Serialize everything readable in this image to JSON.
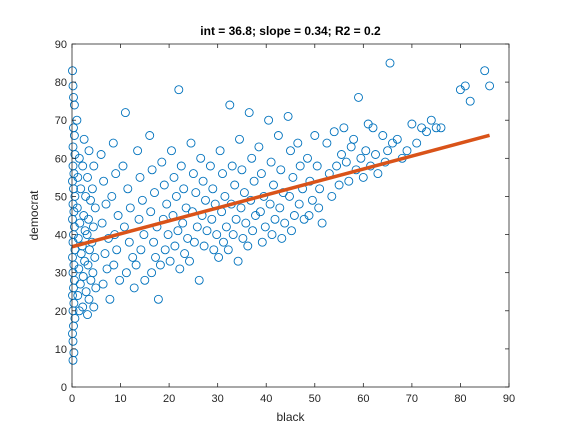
{
  "colors": {
    "points": "#0072BD",
    "fit_line": "#D95319",
    "axes": "#262626",
    "background": "#ffffff"
  },
  "chart_data": {
    "type": "scatter",
    "title": "int = 36.8; slope = 0.34; R2 = 0.2",
    "xlabel": "black",
    "ylabel": "democrat",
    "xlim": [
      0,
      90
    ],
    "ylim": [
      0,
      90
    ],
    "xticks": [
      "0",
      "10",
      "20",
      "30",
      "40",
      "50",
      "60",
      "70",
      "80",
      "90"
    ],
    "yticks": [
      "0",
      "10",
      "20",
      "30",
      "40",
      "50",
      "60",
      "70",
      "80",
      "90"
    ],
    "grid": false,
    "legend": "none",
    "marker": "open-circle",
    "fit_line": {
      "intercept": 36.8,
      "slope": 0.34,
      "r2": 0.2,
      "x_range": [
        0,
        86
      ]
    },
    "series": [
      {
        "points": [
          [
            0.1,
            83
          ],
          [
            0.2,
            79
          ],
          [
            0.3,
            76
          ],
          [
            0.5,
            74
          ],
          [
            1,
            70
          ],
          [
            0.3,
            68
          ],
          [
            0.5,
            66
          ],
          [
            0.2,
            63
          ],
          [
            0.6,
            61
          ],
          [
            0.2,
            58
          ],
          [
            0.4,
            56
          ],
          [
            0.1,
            54
          ],
          [
            0.3,
            52
          ],
          [
            0.6,
            50
          ],
          [
            0.2,
            48
          ],
          [
            0.4,
            46
          ],
          [
            0.1,
            44
          ],
          [
            0.5,
            42
          ],
          [
            0.3,
            40
          ],
          [
            0.2,
            38
          ],
          [
            0.6,
            36
          ],
          [
            0.1,
            34
          ],
          [
            0.4,
            32
          ],
          [
            0.2,
            30
          ],
          [
            0.5,
            28
          ],
          [
            0.3,
            26
          ],
          [
            0.1,
            24
          ],
          [
            0.4,
            22
          ],
          [
            0.2,
            20
          ],
          [
            0.6,
            18
          ],
          [
            0.3,
            16
          ],
          [
            0.1,
            14
          ],
          [
            0.2,
            12
          ],
          [
            0.4,
            9
          ],
          [
            0.2,
            7
          ],
          [
            1.5,
            60
          ],
          [
            1.2,
            55
          ],
          [
            1.8,
            52
          ],
          [
            1.1,
            47
          ],
          [
            1.6,
            43
          ],
          [
            1.3,
            39
          ],
          [
            1.9,
            35
          ],
          [
            1.4,
            31
          ],
          [
            1.7,
            27
          ],
          [
            1.2,
            24
          ],
          [
            1.5,
            20
          ],
          [
            2.5,
            65
          ],
          [
            2.2,
            58
          ],
          [
            2.8,
            50
          ],
          [
            2.4,
            45
          ],
          [
            2.7,
            41
          ],
          [
            2.1,
            37
          ],
          [
            2.6,
            33
          ],
          [
            2.3,
            29
          ],
          [
            2.9,
            25
          ],
          [
            2.2,
            21
          ],
          [
            3.5,
            62
          ],
          [
            3.2,
            55
          ],
          [
            3.8,
            49
          ],
          [
            3.4,
            44
          ],
          [
            3.1,
            40
          ],
          [
            3.6,
            36
          ],
          [
            3.3,
            32
          ],
          [
            3.9,
            28
          ],
          [
            3.5,
            23
          ],
          [
            3.2,
            19
          ],
          [
            4.5,
            58
          ],
          [
            4.2,
            52
          ],
          [
            4.8,
            47
          ],
          [
            4.4,
            42
          ],
          [
            4.1,
            38
          ],
          [
            4.7,
            34
          ],
          [
            4.3,
            30
          ],
          [
            4.9,
            26
          ],
          [
            4.5,
            21
          ],
          [
            6,
            61
          ],
          [
            6.5,
            54
          ],
          [
            7,
            48
          ],
          [
            6.2,
            43
          ],
          [
            7.5,
            39
          ],
          [
            6.8,
            35
          ],
          [
            7.2,
            31
          ],
          [
            6.4,
            27
          ],
          [
            7.8,
            23
          ],
          [
            8.5,
            64
          ],
          [
            9,
            56
          ],
          [
            8.2,
            50
          ],
          [
            9.5,
            45
          ],
          [
            8.8,
            40
          ],
          [
            9.2,
            36
          ],
          [
            8.6,
            32
          ],
          [
            9.8,
            28
          ],
          [
            11,
            72
          ],
          [
            10.5,
            58
          ],
          [
            11.5,
            52
          ],
          [
            12,
            47
          ],
          [
            10.8,
            42
          ],
          [
            11.8,
            38
          ],
          [
            12.5,
            34
          ],
          [
            11.2,
            30
          ],
          [
            12.8,
            26
          ],
          [
            13.5,
            62
          ],
          [
            14,
            55
          ],
          [
            14.5,
            49
          ],
          [
            13.8,
            44
          ],
          [
            14.8,
            40
          ],
          [
            14.2,
            36
          ],
          [
            13.2,
            32
          ],
          [
            15,
            28
          ],
          [
            16,
            66
          ],
          [
            16.5,
            57
          ],
          [
            17,
            51
          ],
          [
            16.2,
            46
          ],
          [
            17.5,
            42
          ],
          [
            16.8,
            38
          ],
          [
            17.2,
            34
          ],
          [
            16.4,
            30
          ],
          [
            17.8,
            23
          ],
          [
            18.5,
            59
          ],
          [
            19,
            53
          ],
          [
            19.5,
            48
          ],
          [
            18.8,
            44
          ],
          [
            19.8,
            40
          ],
          [
            19.2,
            36
          ],
          [
            18.2,
            32
          ],
          [
            20.5,
            62
          ],
          [
            21,
            55
          ],
          [
            21.5,
            50
          ],
          [
            20.8,
            45
          ],
          [
            21.8,
            41
          ],
          [
            21.2,
            37
          ],
          [
            20.2,
            33
          ],
          [
            22,
            78
          ],
          [
            22.5,
            58
          ],
          [
            23,
            52
          ],
          [
            23.5,
            47
          ],
          [
            22.8,
            43
          ],
          [
            23.8,
            39
          ],
          [
            23.2,
            35
          ],
          [
            22.2,
            31
          ],
          [
            24.5,
            64
          ],
          [
            25,
            56
          ],
          [
            25.5,
            51
          ],
          [
            24.8,
            46
          ],
          [
            25.8,
            42
          ],
          [
            25.2,
            38
          ],
          [
            24.2,
            33
          ],
          [
            26.5,
            60
          ],
          [
            27,
            54
          ],
          [
            27.5,
            49
          ],
          [
            26.8,
            45
          ],
          [
            27.8,
            41
          ],
          [
            27.2,
            37
          ],
          [
            26.2,
            28
          ],
          [
            28.5,
            58
          ],
          [
            29,
            52
          ],
          [
            29.5,
            48
          ],
          [
            28.8,
            44
          ],
          [
            29.8,
            40
          ],
          [
            29.2,
            36
          ],
          [
            30.5,
            62
          ],
          [
            31,
            56
          ],
          [
            31.5,
            50
          ],
          [
            30.8,
            46
          ],
          [
            31.8,
            42
          ],
          [
            31.2,
            38
          ],
          [
            30.2,
            34
          ],
          [
            32.5,
            74
          ],
          [
            33,
            58
          ],
          [
            33.5,
            53
          ],
          [
            32.8,
            48
          ],
          [
            33.8,
            44
          ],
          [
            33.2,
            40
          ],
          [
            32.2,
            36
          ],
          [
            34.5,
            65
          ],
          [
            35,
            57
          ],
          [
            35.5,
            51
          ],
          [
            34.8,
            47
          ],
          [
            35.8,
            43
          ],
          [
            35.2,
            39
          ],
          [
            34.2,
            33
          ],
          [
            36.5,
            72
          ],
          [
            37,
            60
          ],
          [
            37.5,
            54
          ],
          [
            36.8,
            49
          ],
          [
            37.8,
            45
          ],
          [
            37.2,
            41
          ],
          [
            36.2,
            37
          ],
          [
            38.5,
            63
          ],
          [
            39,
            56
          ],
          [
            39.5,
            50
          ],
          [
            38.8,
            46
          ],
          [
            39.8,
            42
          ],
          [
            39.2,
            38
          ],
          [
            40.5,
            70
          ],
          [
            41,
            59
          ],
          [
            41.5,
            53
          ],
          [
            40.8,
            48
          ],
          [
            41.8,
            44
          ],
          [
            41.2,
            40
          ],
          [
            42.5,
            66
          ],
          [
            43,
            57
          ],
          [
            43.5,
            51
          ],
          [
            42.8,
            47
          ],
          [
            43.8,
            43
          ],
          [
            43.2,
            39
          ],
          [
            44.5,
            71
          ],
          [
            45,
            62
          ],
          [
            45.5,
            55
          ],
          [
            44.8,
            50
          ],
          [
            45.8,
            45
          ],
          [
            45.2,
            41
          ],
          [
            46.5,
            64
          ],
          [
            47,
            58
          ],
          [
            47.5,
            52
          ],
          [
            46.8,
            48
          ],
          [
            47.8,
            44
          ],
          [
            48.5,
            60
          ],
          [
            49,
            54
          ],
          [
            49.5,
            49
          ],
          [
            48.8,
            45
          ],
          [
            50,
            66
          ],
          [
            50.5,
            58
          ],
          [
            51,
            52
          ],
          [
            50.8,
            47
          ],
          [
            51.5,
            43
          ],
          [
            52.5,
            64
          ],
          [
            53,
            56
          ],
          [
            53.5,
            50
          ],
          [
            54,
            67
          ],
          [
            54.5,
            58
          ],
          [
            55,
            53
          ],
          [
            55.5,
            61
          ],
          [
            56,
            68
          ],
          [
            56.5,
            59
          ],
          [
            57,
            54
          ],
          [
            57.5,
            63
          ],
          [
            58,
            65
          ],
          [
            58.5,
            57
          ],
          [
            59,
            76
          ],
          [
            59.5,
            60
          ],
          [
            60,
            55
          ],
          [
            60.5,
            62
          ],
          [
            61,
            69
          ],
          [
            61.5,
            58
          ],
          [
            62,
            68
          ],
          [
            62.5,
            61
          ],
          [
            63,
            56
          ],
          [
            64,
            66
          ],
          [
            64.5,
            59
          ],
          [
            65,
            62
          ],
          [
            65.5,
            85
          ],
          [
            66,
            64
          ],
          [
            67,
            65
          ],
          [
            68,
            60
          ],
          [
            69,
            62
          ],
          [
            70,
            69
          ],
          [
            71,
            64
          ],
          [
            72,
            68
          ],
          [
            73,
            67
          ],
          [
            74,
            70
          ],
          [
            75,
            68
          ],
          [
            76,
            68
          ],
          [
            80,
            78
          ],
          [
            81,
            79
          ],
          [
            82,
            75
          ],
          [
            85,
            83
          ],
          [
            86,
            79
          ]
        ]
      }
    ]
  }
}
